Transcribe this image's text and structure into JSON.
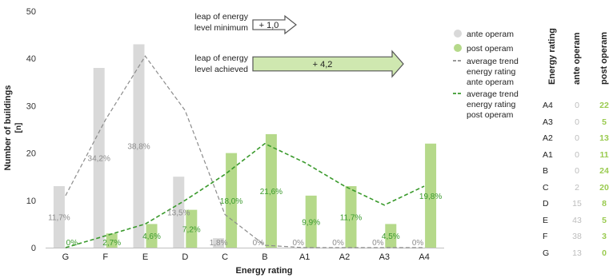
{
  "chart_data": {
    "type": "bar",
    "categories": [
      "G",
      "F",
      "E",
      "D",
      "C",
      "B",
      "A1",
      "A2",
      "A3",
      "A4"
    ],
    "series": [
      {
        "name": "ante operam",
        "values": [
          13,
          38,
          43,
          15,
          2,
          0,
          0,
          0,
          0,
          0
        ],
        "color": "#d9d9d9"
      },
      {
        "name": "post operam",
        "values": [
          0,
          3,
          5,
          8,
          20,
          24,
          11,
          13,
          5,
          22
        ],
        "color": "#b5d98a"
      }
    ],
    "ante_percent_labels": [
      "11,7%",
      "34,2%",
      "38,8%",
      "13,5%",
      "1,8%",
      "0%",
      "0%",
      "0%",
      "0%",
      "0%"
    ],
    "post_percent_labels": [
      "0%",
      "2,7%",
      "4,6%",
      "7,2%",
      "18,0%",
      "21,6%",
      "9,9%",
      "11,7%",
      "4,5%",
      "19,8%"
    ],
    "trend_lines": [
      {
        "name": "average trend energy rating ante operam",
        "values": [
          11,
          27,
          40.5,
          29,
          7,
          0.5,
          0,
          0,
          0,
          0
        ],
        "color": "#8c8c8c"
      },
      {
        "name": "average trend energy rating post operam",
        "values": [
          0,
          2.5,
          5,
          10,
          15.5,
          22,
          18,
          13,
          9,
          13
        ],
        "color": "#3a9a2c"
      }
    ],
    "xlabel": "Energy rating",
    "ylabel": "Number of buildings",
    "ylabel_unit": "[n]",
    "ylim": [
      0,
      50
    ],
    "yticks": [
      0,
      10,
      20,
      30,
      40,
      50
    ],
    "grid": false,
    "legend_position": "right",
    "legend": [
      {
        "label": "ante operam",
        "kind": "dot",
        "color": "#d9d9d9"
      },
      {
        "label": "post operam",
        "kind": "dot",
        "color": "#b5d98a"
      },
      {
        "label": "average trend energy rating ante operam",
        "kind": "dash",
        "color": "#8c8c8c"
      },
      {
        "label": "average trend energy rating post operam",
        "kind": "dash",
        "color": "#3a9a2c"
      }
    ],
    "annotations": [
      {
        "label_line1": "leap of energy",
        "label_line2": "level minimum",
        "value": "+ 1,0",
        "fill": "#ffffff"
      },
      {
        "label_line1": "leap of energy",
        "label_line2": "level achieved",
        "value": "+ 4,2",
        "fill": "#cfe8b0"
      }
    ]
  },
  "side_table": {
    "headers": [
      "Energy rating",
      "ante operam",
      "post operam"
    ],
    "rows": [
      {
        "rating": "A4",
        "ante": "0",
        "post": "22"
      },
      {
        "rating": "A3",
        "ante": "0",
        "post": "5"
      },
      {
        "rating": "A2",
        "ante": "0",
        "post": "13"
      },
      {
        "rating": "A1",
        "ante": "0",
        "post": "11"
      },
      {
        "rating": "B",
        "ante": "0",
        "post": "24"
      },
      {
        "rating": "C",
        "ante": "2",
        "post": "20"
      },
      {
        "rating": "D",
        "ante": "15",
        "post": "8"
      },
      {
        "rating": "E",
        "ante": "43",
        "post": "5"
      },
      {
        "rating": "F",
        "ante": "38",
        "post": "3"
      },
      {
        "rating": "G",
        "ante": "13",
        "post": "0"
      }
    ]
  }
}
